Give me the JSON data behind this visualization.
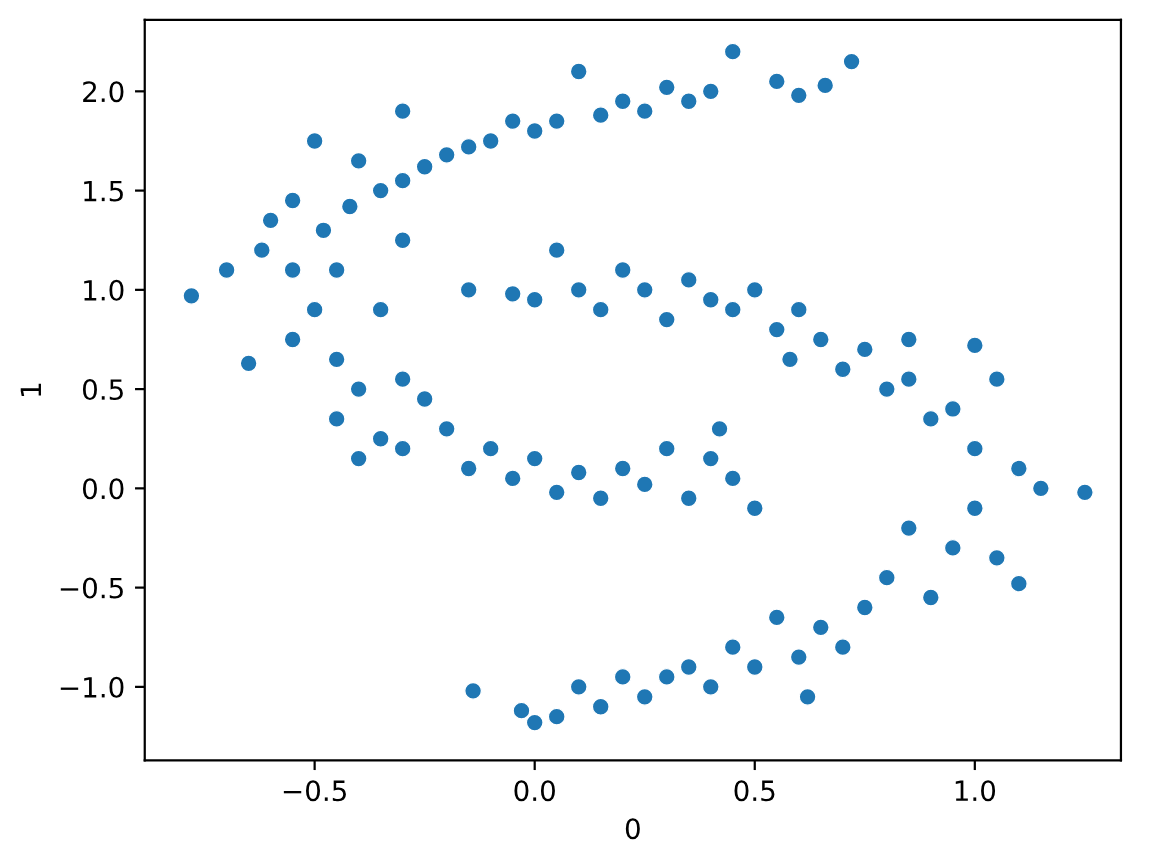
{
  "chart_data": {
    "type": "scatter",
    "xlabel": "0",
    "ylabel": "1",
    "xlim": [
      -0.886,
      1.332
    ],
    "ylim": [
      -1.37,
      2.36
    ],
    "xticks": [
      {
        "value": -0.5,
        "label": "−0.5"
      },
      {
        "value": 0,
        "label": "0.0"
      },
      {
        "value": 0.5,
        "label": "0.5"
      },
      {
        "value": 1.0,
        "label": "1.0"
      }
    ],
    "yticks": [
      {
        "value": -1.0,
        "label": "−1.0"
      },
      {
        "value": -0.5,
        "label": "−0.5"
      },
      {
        "value": 0,
        "label": "0.0"
      },
      {
        "value": 0.5,
        "label": "0.5"
      },
      {
        "value": 1.0,
        "label": "1.0"
      },
      {
        "value": 1.5,
        "label": "1.5"
      },
      {
        "value": 2.0,
        "label": "2.0"
      }
    ],
    "marker": "circle",
    "grid": false,
    "series": [
      {
        "color": "#1f77b4",
        "x": [
          0.72,
          0.66,
          0.6,
          0.55,
          0.45,
          0.4,
          0.35,
          0.3,
          0.25,
          0.2,
          0.15,
          0.1,
          0.05,
          0,
          -0.05,
          -0.1,
          -0.15,
          -0.2,
          -0.25,
          -0.3,
          -0.3,
          -0.35,
          -0.4,
          -0.42,
          -0.5,
          -0.48,
          -0.55,
          -0.6,
          -0.55,
          -0.62,
          -0.65,
          -0.7,
          -0.78,
          -0.5,
          -0.55,
          -0.45,
          -0.4,
          -0.45,
          -0.4,
          -0.35,
          -0.3,
          -0.3,
          -0.25,
          -0.2,
          -0.15,
          -0.1,
          -0.05,
          0,
          0.05,
          0.1,
          0.15,
          0.2,
          0.25,
          0.3,
          0.35,
          0.4,
          0.45,
          0.5,
          0.42,
          -0.3,
          -0.35,
          -0.45,
          -0.15,
          -0.05,
          0,
          0.05,
          0.1,
          0.15,
          0.2,
          0.25,
          0.3,
          0.35,
          0.4,
          0.45,
          0.5,
          0.55,
          0.6,
          0.65,
          0.7,
          0.75,
          0.8,
          0.85,
          0.9,
          0.95,
          1.0,
          1.05,
          1.0,
          1.1,
          1.15,
          1.25,
          1.0,
          0.95,
          1.05,
          1.1,
          0.9,
          0.85,
          0.8,
          0.75,
          0.7,
          0.65,
          0.6,
          0.55,
          0.5,
          0.45,
          0.4,
          0.35,
          0.3,
          0.25,
          0.2,
          0.15,
          0.1,
          0.05,
          0,
          -0.03,
          -0.14,
          0.62,
          0.85,
          0.58
        ],
        "values": [
          2.15,
          2.03,
          1.98,
          2.05,
          2.2,
          2.0,
          1.95,
          2.02,
          1.9,
          1.95,
          1.88,
          2.1,
          1.85,
          1.8,
          1.85,
          1.75,
          1.72,
          1.68,
          1.62,
          1.9,
          1.55,
          1.5,
          1.65,
          1.42,
          1.75,
          1.3,
          1.45,
          1.35,
          1.1,
          1.2,
          0.63,
          1.1,
          0.97,
          0.9,
          0.75,
          0.65,
          0.5,
          0.35,
          0.15,
          0.25,
          0.55,
          0.2,
          0.45,
          0.3,
          0.1,
          0.2,
          0.05,
          0.15,
          -0.02,
          0.08,
          -0.05,
          0.1,
          0.02,
          0.2,
          -0.05,
          0.15,
          0.05,
          -0.1,
          0.3,
          1.25,
          0.9,
          1.1,
          1.0,
          0.98,
          0.95,
          1.2,
          1.0,
          0.9,
          1.1,
          1.0,
          0.85,
          1.05,
          0.95,
          0.9,
          1.0,
          0.8,
          0.9,
          0.75,
          0.6,
          0.7,
          0.5,
          0.55,
          0.35,
          0.4,
          0.2,
          0.55,
          0.72,
          0.1,
          0.0,
          -0.02,
          -0.1,
          -0.3,
          -0.35,
          -0.48,
          -0.55,
          -0.2,
          -0.45,
          -0.6,
          -0.8,
          -0.7,
          -0.85,
          -0.65,
          -0.9,
          -0.8,
          -1.0,
          -0.9,
          -0.95,
          -1.05,
          -0.95,
          -1.1,
          -1.0,
          -1.15,
          -1.18,
          -1.12,
          -1.02,
          -1.05,
          0.75,
          0.65
        ]
      }
    ]
  }
}
